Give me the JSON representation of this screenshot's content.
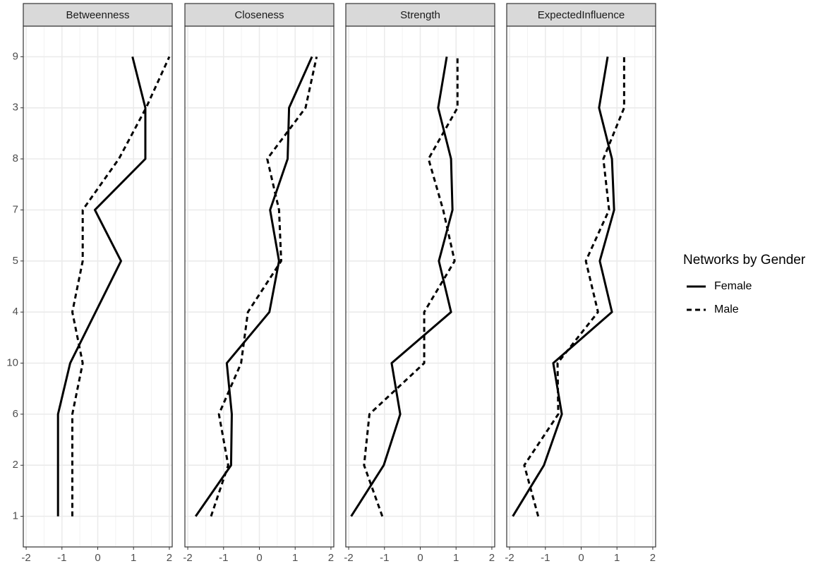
{
  "chart_data": [
    {
      "type": "line",
      "title": "Betweenness",
      "categories": [
        "1",
        "2",
        "6",
        "10",
        "4",
        "5",
        "7",
        "8",
        "3",
        "9"
      ],
      "series": [
        {
          "name": "Female",
          "color": "#000000",
          "dash": "solid",
          "values": [
            -1.11,
            -1.11,
            -1.11,
            -0.77,
            -0.06,
            0.65,
            -0.08,
            1.33,
            1.33,
            0.97
          ]
        },
        {
          "name": "Male",
          "color": "#000000",
          "dash": "dashed",
          "values": [
            -0.71,
            -0.71,
            -0.71,
            -0.42,
            -0.71,
            -0.42,
            -0.42,
            0.59,
            1.35,
            2.0
          ]
        }
      ],
      "xlim": [
        -2.08,
        2.08
      ],
      "xticks": [
        -2,
        -1,
        0,
        1,
        2
      ],
      "grid": true
    },
    {
      "type": "line",
      "title": "Closeness",
      "categories": [
        "1",
        "2",
        "6",
        "10",
        "4",
        "5",
        "7",
        "8",
        "3",
        "9"
      ],
      "series": [
        {
          "name": "Female",
          "color": "#000000",
          "dash": "solid",
          "values": [
            -1.78,
            -0.79,
            -0.77,
            -0.91,
            0.28,
            0.55,
            0.3,
            0.79,
            0.83,
            1.47
          ]
        },
        {
          "name": "Male",
          "color": "#000000",
          "dash": "dashed",
          "values": [
            -1.35,
            -0.87,
            -1.13,
            -0.51,
            -0.32,
            0.61,
            0.55,
            0.22,
            1.29,
            1.6
          ]
        }
      ],
      "xlim": [
        -2.08,
        2.08
      ],
      "xticks": [
        -2,
        -1,
        0,
        1,
        2
      ],
      "grid": true
    },
    {
      "type": "line",
      "title": "Strength",
      "categories": [
        "1",
        "2",
        "6",
        "10",
        "4",
        "5",
        "7",
        "8",
        "3",
        "9"
      ],
      "series": [
        {
          "name": "Female",
          "color": "#000000",
          "dash": "solid",
          "values": [
            -1.93,
            -1.02,
            -0.56,
            -0.8,
            0.86,
            0.52,
            0.9,
            0.86,
            0.5,
            0.74
          ]
        },
        {
          "name": "Male",
          "color": "#000000",
          "dash": "dashed",
          "values": [
            -1.06,
            -1.57,
            -1.42,
            0.11,
            0.11,
            0.96,
            0.64,
            0.23,
            1.04,
            1.04
          ]
        }
      ],
      "xlim": [
        -2.08,
        2.08
      ],
      "xticks": [
        -2,
        -1,
        0,
        1,
        2
      ],
      "grid": true
    },
    {
      "type": "line",
      "title": "ExpectedInfluence",
      "categories": [
        "1",
        "2",
        "6",
        "10",
        "4",
        "5",
        "7",
        "8",
        "3",
        "9"
      ],
      "series": [
        {
          "name": "Female",
          "color": "#000000",
          "dash": "solid",
          "values": [
            -1.91,
            -1.04,
            -0.54,
            -0.78,
            0.86,
            0.52,
            0.92,
            0.86,
            0.5,
            0.74
          ]
        },
        {
          "name": "Male",
          "color": "#000000",
          "dash": "dashed",
          "values": [
            -1.2,
            -1.59,
            -0.64,
            -0.66,
            0.47,
            0.13,
            0.78,
            0.62,
            1.2,
            1.2
          ]
        }
      ],
      "xlim": [
        -2.08,
        2.08
      ],
      "xticks": [
        -2,
        -1,
        0,
        1,
        2
      ],
      "grid": true
    }
  ],
  "legend": {
    "title": "Networks by Gender",
    "position": "right"
  }
}
